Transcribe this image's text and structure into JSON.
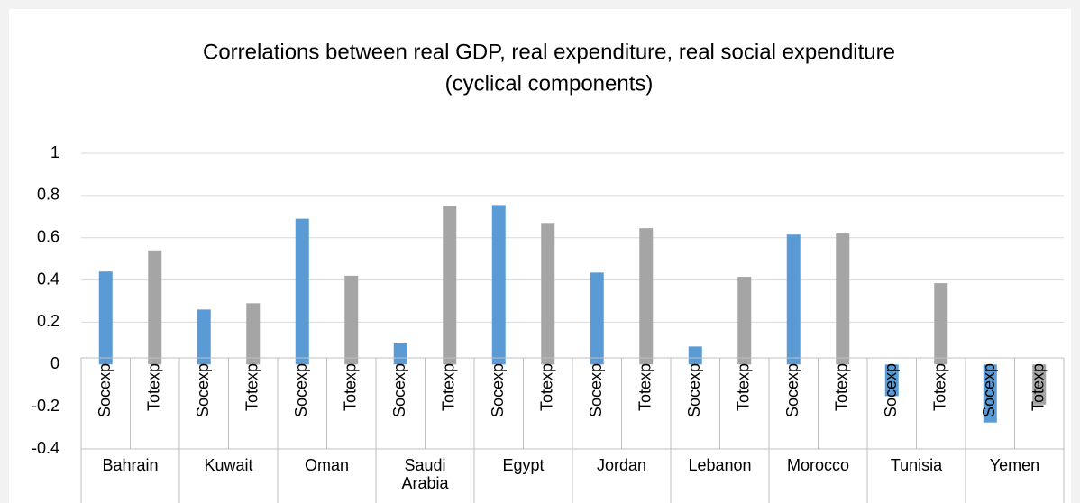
{
  "chart_data": {
    "type": "bar",
    "title": [
      "Correlations between real GDP, real expenditure, real social expenditure",
      "(cyclical components)"
    ],
    "groups": [
      {
        "name": "Bahrain",
        "categories": [
          "Socexp",
          "Totexp"
        ],
        "values": [
          0.44,
          0.54
        ]
      },
      {
        "name": "Kuwait",
        "categories": [
          "Socexp",
          "Totexp"
        ],
        "values": [
          0.26,
          0.29
        ]
      },
      {
        "name": "Oman",
        "categories": [
          "Socexp",
          "Totexp"
        ],
        "values": [
          0.69,
          0.42
        ]
      },
      {
        "name": "Saudi Arabia",
        "categories": [
          "Socexp",
          "Totexp"
        ],
        "values": [
          0.1,
          0.75
        ]
      },
      {
        "name": "Egypt",
        "categories": [
          "Socexp",
          "Totexp"
        ],
        "values": [
          0.755,
          0.67
        ]
      },
      {
        "name": "Jordan",
        "categories": [
          "Socexp",
          "Totexp"
        ],
        "values": [
          0.435,
          0.645
        ]
      },
      {
        "name": "Lebanon",
        "categories": [
          "Socexp",
          "Totexp"
        ],
        "values": [
          0.085,
          0.415
        ]
      },
      {
        "name": "Morocco",
        "categories": [
          "Socexp",
          "Totexp"
        ],
        "values": [
          0.615,
          0.62
        ]
      },
      {
        "name": "Tunisia",
        "categories": [
          "Socexp",
          "Totexp"
        ],
        "values": [
          -0.15,
          0.385
        ]
      },
      {
        "name": "Yemen",
        "categories": [
          "Socexp",
          "Totexp"
        ],
        "values": [
          -0.275,
          -0.19
        ]
      }
    ],
    "colors": [
      "#5b9bd5",
      "#a5a5a5"
    ],
    "ylim": [
      -0.4,
      1
    ],
    "yticks": [
      -0.4,
      -0.2,
      0,
      0.2,
      0.4,
      0.6,
      0.8,
      1
    ],
    "grid": true
  }
}
